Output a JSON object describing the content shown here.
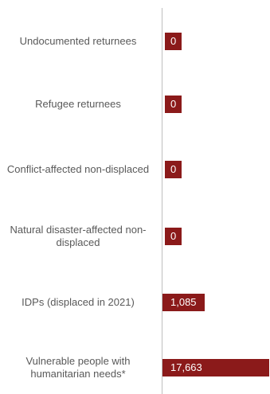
{
  "chart_data": {
    "type": "bar",
    "orientation": "horizontal",
    "categories": [
      "Undocumented returnees",
      "Refugee returnees",
      "Conflict-affected non-displaced",
      "Natural disaster-affected non-displaced",
      "IDPs (displaced in 2021)",
      "Vulnerable people with humanitarian needs*"
    ],
    "values": [
      0,
      0,
      0,
      0,
      1085,
      17663
    ],
    "value_labels": [
      "0",
      "0",
      "0",
      "0",
      "1,085",
      "17,663"
    ],
    "color": "#8b1a1a"
  }
}
